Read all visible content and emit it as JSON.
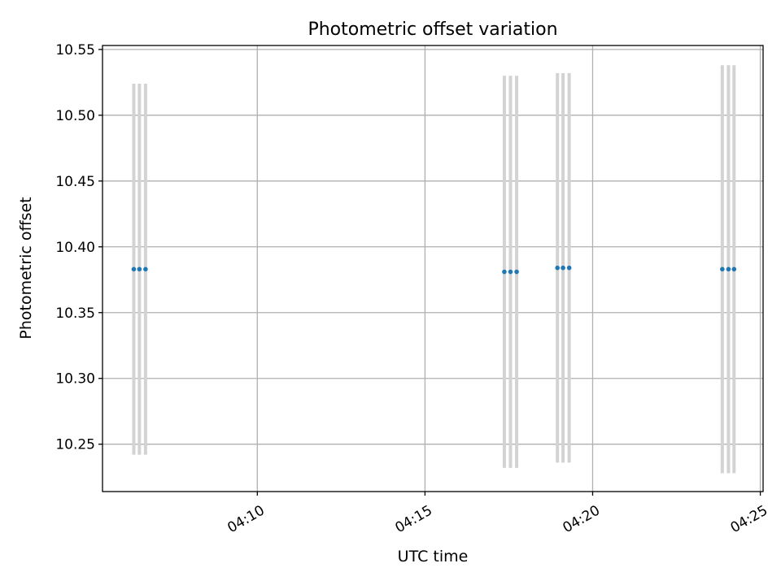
{
  "chart_data": {
    "type": "scatter",
    "title": "Photometric offset variation",
    "xlabel": "UTC time",
    "ylabel": "Photometric offset",
    "x_tick_labels": [
      "04:10",
      "04:15",
      "04:20",
      "04:25"
    ],
    "x_tick_minutes": [
      10,
      15,
      20,
      25
    ],
    "xlim": [
      "04:05:23",
      "04:25:05"
    ],
    "ylim": [
      10.214,
      10.553
    ],
    "y_ticks": [
      10.25,
      10.3,
      10.35,
      10.4,
      10.45,
      10.5,
      10.55
    ],
    "y_tick_labels": [
      "10.25",
      "10.30",
      "10.35",
      "10.40",
      "10.45",
      "10.50",
      "10.55"
    ],
    "grid": true,
    "series": [
      {
        "points": [
          {
            "x": "04:06:19",
            "y": 10.383,
            "yerr": 0.141
          },
          {
            "x": "04:06:29",
            "y": 10.383,
            "yerr": 0.141
          },
          {
            "x": "04:06:40",
            "y": 10.383,
            "yerr": 0.141
          },
          {
            "x": "04:17:22",
            "y": 10.381,
            "yerr": 0.149
          },
          {
            "x": "04:17:33",
            "y": 10.381,
            "yerr": 0.149
          },
          {
            "x": "04:17:44",
            "y": 10.381,
            "yerr": 0.149
          },
          {
            "x": "04:18:57",
            "y": 10.384,
            "yerr": 0.148
          },
          {
            "x": "04:19:07",
            "y": 10.384,
            "yerr": 0.148
          },
          {
            "x": "04:19:18",
            "y": 10.384,
            "yerr": 0.148
          },
          {
            "x": "04:23:52",
            "y": 10.383,
            "yerr": 0.155
          },
          {
            "x": "04:24:03",
            "y": 10.383,
            "yerr": 0.155
          },
          {
            "x": "04:24:13",
            "y": 10.383,
            "yerr": 0.155
          }
        ]
      }
    ],
    "colors": {
      "point": "#1f77b4",
      "error_bar": "#d3d3d3",
      "grid": "#b0b0b0"
    }
  }
}
